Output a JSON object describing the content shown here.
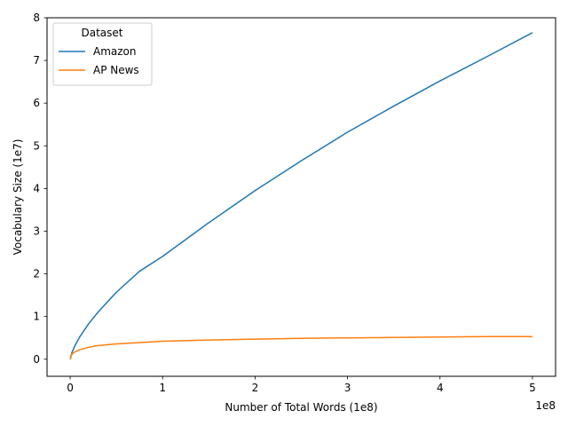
{
  "chart_data": {
    "type": "line",
    "title": "",
    "xlabel": "Number of Total Words (1e8)",
    "ylabel": "Vocabulary Size (1e7)",
    "x_offset_text": "1e8",
    "xlim": [
      -0.25,
      5.25
    ],
    "ylim": [
      -0.4,
      8.0
    ],
    "xticks": [
      0,
      1,
      2,
      3,
      4,
      5
    ],
    "yticks": [
      0,
      1,
      2,
      3,
      4,
      5,
      6,
      7,
      8
    ],
    "grid": false,
    "legend": {
      "title": "Dataset",
      "position": "top-left"
    },
    "x": [
      0,
      0.02,
      0.05,
      0.1,
      0.2,
      0.3,
      0.5,
      0.75,
      1.0,
      1.5,
      2.0,
      2.5,
      3.0,
      3.5,
      4.0,
      4.5,
      5.0
    ],
    "series": [
      {
        "name": "Amazon",
        "color": "#1f77b4",
        "values": [
          0,
          0.16,
          0.31,
          0.51,
          0.83,
          1.1,
          1.57,
          2.06,
          2.41,
          3.2,
          3.95,
          4.65,
          5.32,
          5.93,
          6.52,
          7.08,
          7.65
        ]
      },
      {
        "name": "AP News",
        "color": "#ff7f0e",
        "values": [
          0,
          0.12,
          0.17,
          0.22,
          0.28,
          0.32,
          0.36,
          0.39,
          0.42,
          0.45,
          0.47,
          0.49,
          0.5,
          0.51,
          0.52,
          0.53,
          0.53
        ]
      }
    ]
  }
}
